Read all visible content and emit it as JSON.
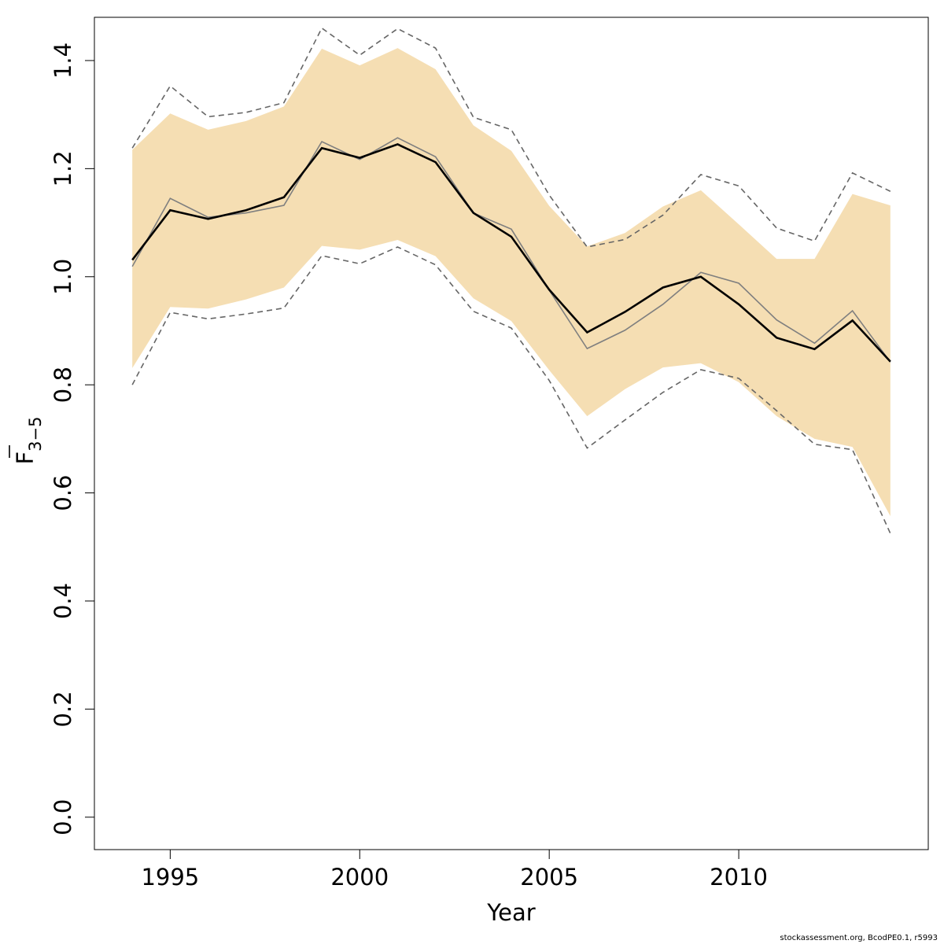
{
  "chart_data": {
    "type": "line",
    "xlabel": "Year",
    "ylabel": "F",
    "ylabel_subscript": "3−5",
    "xlim": [
      1993,
      2015
    ],
    "ylim": [
      -0.06,
      1.48
    ],
    "x_ticks": [
      1995,
      2000,
      2005,
      2010
    ],
    "y_ticks": [
      0.0,
      0.2,
      0.4,
      0.6,
      0.8,
      1.0,
      1.2,
      1.4
    ],
    "y_tick_labels": [
      "0.0",
      "0.2",
      "0.4",
      "0.6",
      "0.8",
      "1.0",
      "1.2",
      "1.4"
    ],
    "grid": false,
    "legend": "none",
    "x": [
      1994,
      1995,
      1996,
      1997,
      1998,
      1999,
      2000,
      2001,
      2002,
      2003,
      2004,
      2005,
      2006,
      2007,
      2008,
      2009,
      2010,
      2011,
      2012,
      2013,
      2014
    ],
    "series": [
      {
        "role": "confidence-band",
        "color": "#f5deb3",
        "upper": [
          1.235,
          1.302,
          1.272,
          1.288,
          1.315,
          1.422,
          1.391,
          1.423,
          1.384,
          1.28,
          1.233,
          1.131,
          1.056,
          1.081,
          1.13,
          1.16,
          1.097,
          1.033,
          1.033,
          1.153,
          1.132
        ],
        "lower": [
          0.831,
          0.944,
          0.941,
          0.958,
          0.98,
          1.057,
          1.05,
          1.068,
          1.038,
          0.96,
          0.918,
          0.827,
          0.742,
          0.792,
          0.832,
          0.84,
          0.805,
          0.742,
          0.7,
          0.685,
          0.557
        ]
      },
      {
        "role": "upper-dashed",
        "color": "#666666",
        "values": [
          1.238,
          1.353,
          1.296,
          1.304,
          1.322,
          1.46,
          1.41,
          1.459,
          1.423,
          1.295,
          1.272,
          1.151,
          1.055,
          1.069,
          1.114,
          1.189,
          1.168,
          1.09,
          1.066,
          1.192,
          1.158
        ]
      },
      {
        "role": "lower-dashed",
        "color": "#666666",
        "values": [
          0.8,
          0.934,
          0.922,
          0.931,
          0.942,
          1.039,
          1.024,
          1.055,
          1.022,
          0.936,
          0.905,
          0.808,
          0.683,
          0.735,
          0.786,
          0.828,
          0.812,
          0.752,
          0.69,
          0.68,
          0.525
        ]
      },
      {
        "role": "grey-line",
        "color": "#7f7f7f",
        "values": [
          1.019,
          1.145,
          1.11,
          1.118,
          1.132,
          1.25,
          1.217,
          1.257,
          1.222,
          1.118,
          1.088,
          0.975,
          0.867,
          0.901,
          0.949,
          1.008,
          0.988,
          0.92,
          0.877,
          0.937,
          0.842
        ]
      },
      {
        "role": "estimate",
        "color": "#000000",
        "values": [
          1.031,
          1.123,
          1.107,
          1.123,
          1.147,
          1.238,
          1.22,
          1.245,
          1.212,
          1.118,
          1.074,
          0.976,
          0.897,
          0.935,
          0.98,
          1.0,
          0.949,
          0.887,
          0.866,
          0.919,
          0.843
        ]
      }
    ]
  },
  "footer": {
    "note": "stockassessment.org, BcodPE0.1, r5993"
  }
}
